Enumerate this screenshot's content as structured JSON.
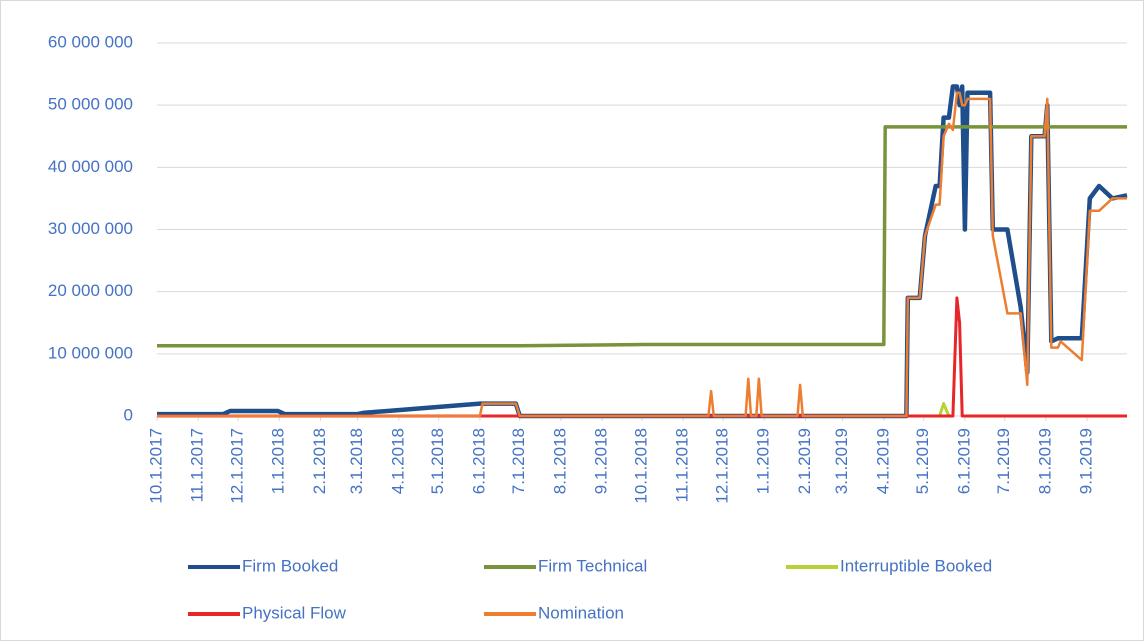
{
  "chart_data": {
    "type": "line",
    "x": [
      "10.1.2017",
      "11.20.2017",
      "11.25.2017",
      "12.1.2017",
      "12.31.2017",
      "1.5.2018",
      "3.1.2018",
      "3.5.2018",
      "6.1.2018",
      "6.3.2018",
      "6.28.2018",
      "7.1.2018",
      "10.1.2018",
      "11.20.2018",
      "11.22.2018",
      "11.24.2018",
      "12.18.2018",
      "12.20.2018",
      "12.22.2018",
      "12.26.2018",
      "12.28.2018",
      "12.30.2018",
      "1.26.2019",
      "1.28.2019",
      "1.30.2019",
      "4.1.2019",
      "4.2.2019",
      "4.18.2019",
      "4.19.2019",
      "4.28.2019",
      "5.2.2019",
      "5.10.2019",
      "5.13.2019",
      "5.16.2019",
      "5.20.2019",
      "5.23.2019",
      "5.26.2019",
      "5.28.2019",
      "5.30.2019",
      "6.1.2019",
      "6.3.2019",
      "6.20.2019",
      "6.22.2019",
      "7.3.2019",
      "7.13.2019",
      "7.18.2019",
      "7.21.2019",
      "7.31.2019",
      "8.2.2019",
      "8.5.2019",
      "8.10.2019",
      "8.12.2019",
      "8.28.2019",
      "9.3.2019",
      "9.10.2019",
      "9.20.2019",
      "10.1.2019"
    ],
    "series": [
      {
        "name": "Firm Booked",
        "color": "#1f4e8c",
        "values": [
          300000,
          300000,
          800000,
          800000,
          800000,
          300000,
          300000,
          500000,
          2000000,
          2000000,
          2000000,
          0,
          0,
          0,
          0,
          0,
          0,
          0,
          0,
          0,
          0,
          0,
          0,
          0,
          0,
          0,
          0,
          0,
          19000000,
          19000000,
          29000000,
          37000000,
          37000000,
          48000000,
          48000000,
          53000000,
          53000000,
          50000000,
          53000000,
          30000000,
          52000000,
          52000000,
          30000000,
          30000000,
          17500000,
          7000000,
          45000000,
          45000000,
          50000000,
          12000000,
          12500000,
          12500000,
          12500000,
          35000000,
          37000000,
          35000000,
          35500000
        ]
      },
      {
        "name": "Firm Technical",
        "color": "#77933c",
        "values": [
          11300000,
          11300000,
          11300000,
          11300000,
          11300000,
          11300000,
          11300000,
          11300000,
          11300000,
          11300000,
          11300000,
          11300000,
          11500000,
          11500000,
          11500000,
          11500000,
          11500000,
          11500000,
          11500000,
          11500000,
          11500000,
          11500000,
          11500000,
          11500000,
          11500000,
          11500000,
          46500000,
          46500000,
          46500000,
          46500000,
          46500000,
          46500000,
          46500000,
          46500000,
          46500000,
          46500000,
          46500000,
          46500000,
          46500000,
          46500000,
          46500000,
          46500000,
          46500000,
          46500000,
          46500000,
          46500000,
          46500000,
          46500000,
          46500000,
          46500000,
          46500000,
          46500000,
          46500000,
          46500000,
          46500000,
          46500000,
          46500000
        ]
      },
      {
        "name": "Interruptible Booked",
        "color": "#b5d334",
        "values": [
          null,
          null,
          null,
          null,
          null,
          null,
          null,
          null,
          null,
          null,
          null,
          null,
          null,
          null,
          null,
          null,
          null,
          null,
          null,
          null,
          null,
          null,
          null,
          null,
          null,
          null,
          null,
          null,
          null,
          null,
          null,
          null,
          0,
          2000000,
          0,
          null,
          null,
          null,
          null,
          null,
          null,
          null,
          null,
          null,
          null,
          null,
          null,
          null,
          null,
          null,
          null,
          null,
          null,
          null,
          null,
          null,
          null
        ]
      },
      {
        "name": "Physical Flow",
        "color": "#e8262a",
        "values": [
          0,
          0,
          0,
          0,
          0,
          0,
          0,
          0,
          0,
          0,
          0,
          0,
          0,
          0,
          0,
          0,
          0,
          0,
          0,
          0,
          0,
          0,
          0,
          0,
          0,
          0,
          0,
          0,
          0,
          0,
          0,
          0,
          0,
          0,
          0,
          0,
          19000000,
          15000000,
          0,
          0,
          0,
          0,
          0,
          0,
          0,
          0,
          0,
          0,
          0,
          0,
          0,
          0,
          0,
          0,
          0,
          0,
          0
        ]
      },
      {
        "name": "Nomination",
        "color": "#ed7d31",
        "values": [
          0,
          0,
          0,
          0,
          0,
          0,
          0,
          0,
          0,
          2000000,
          2000000,
          0,
          0,
          0,
          4000000,
          0,
          0,
          6000000,
          0,
          0,
          6000000,
          0,
          0,
          5000000,
          0,
          0,
          0,
          0,
          19000000,
          19000000,
          29000000,
          34000000,
          34000000,
          45000000,
          47000000,
          46000000,
          52000000,
          52000000,
          50000000,
          50000000,
          51000000,
          51000000,
          29000000,
          16500000,
          16500000,
          5000000,
          45000000,
          45000000,
          51000000,
          11000000,
          11000000,
          12000000,
          9000000,
          33000000,
          33000000,
          35000000,
          35000000
        ]
      }
    ],
    "xlim": [
      "10.1.2017",
      "10.1.2019"
    ],
    "xticks": [
      "10.1.2017",
      "11.1.2017",
      "12.1.2017",
      "1.1.2018",
      "2.1.2018",
      "3.1.2018",
      "4.1.2018",
      "5.1.2018",
      "6.1.2018",
      "7.1.2018",
      "8.1.2018",
      "9.1.2018",
      "10.1.2018",
      "11.1.2018",
      "12.1.2018",
      "1.1.2019",
      "2.1.2019",
      "3.1.2019",
      "4.1.2019",
      "5.1.2019",
      "6.1.2019",
      "7.1.2019",
      "8.1.2019",
      "9.1.2019"
    ],
    "ylim": [
      0,
      60000000
    ],
    "yticks": [
      0,
      {
        "value": 10000000,
        "label": "10 000 000"
      },
      {
        "value": 20000000,
        "label": "20 000 000"
      },
      {
        "value": 30000000,
        "label": "30 000 000"
      },
      {
        "value": 40000000,
        "label": "40 000 000"
      },
      {
        "value": 50000000,
        "label": "50 000 000"
      },
      {
        "value": 60000000,
        "label": "60 000 000"
      }
    ],
    "grid": true,
    "legend": "bottom"
  }
}
